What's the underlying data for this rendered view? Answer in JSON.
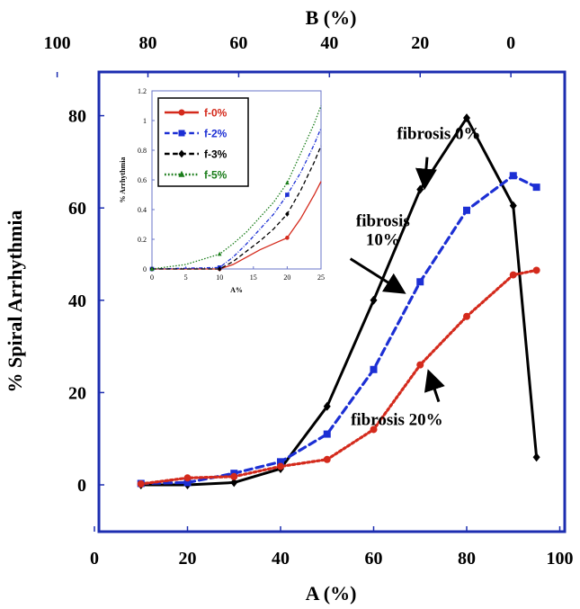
{
  "chart_data": [
    {
      "type": "line",
      "title": "",
      "xlabel": "A (%)",
      "ylabel": "% Spiral Arrhythmia",
      "xlim": [
        0,
        100
      ],
      "ylim": [
        -10,
        90
      ],
      "x_ticks": [
        "0",
        "20",
        "40",
        "60",
        "80",
        "100"
      ],
      "y_ticks": [
        "0",
        "20",
        "40",
        "60",
        "80"
      ],
      "top_axis": {
        "label": "B (%)",
        "ticks": [
          "100",
          "80",
          "60",
          "40",
          "20",
          "0"
        ],
        "tick_positions_a": [
          -8,
          11.5,
          31,
          50.5,
          70,
          89.5
        ]
      },
      "series": [
        {
          "name": "fibrosis 0%",
          "color": "#000000",
          "style": "solid",
          "marker": "diamond",
          "x": [
            10,
            20,
            30,
            40,
            50,
            60,
            70,
            80,
            90,
            95
          ],
          "y": [
            0,
            0,
            0.5,
            3.5,
            17,
            40,
            64,
            79.5,
            60.5,
            6
          ]
        },
        {
          "name": "fibrosis 10%",
          "color": "#1c2fd4",
          "style": "dashed",
          "marker": "square",
          "x": [
            10,
            20,
            30,
            40,
            50,
            60,
            70,
            80,
            90,
            95
          ],
          "y": [
            0.3,
            0.5,
            2.5,
            5,
            11,
            25,
            44,
            59.5,
            67,
            64.5
          ]
        },
        {
          "name": "fibrosis 20%",
          "color": "#d42a1c",
          "style": "dotted",
          "marker": "circle",
          "x": [
            10,
            20,
            30,
            40,
            50,
            60,
            70,
            80,
            90,
            95
          ],
          "y": [
            0.2,
            1.5,
            1.8,
            4,
            5.5,
            12,
            26,
            36.5,
            45.5,
            46.5
          ]
        }
      ],
      "annotations": [
        {
          "text": "fibrosis 0%",
          "lines": [
            "fibrosis 0%"
          ],
          "data_x": 74,
          "data_y": 75,
          "arrow_to": [
            71,
            65
          ]
        },
        {
          "text": "fibrosis 10%",
          "lines": [
            "fibrosis",
            "10%"
          ],
          "data_x": 62,
          "data_y": 56,
          "arrow_to": [
            66,
            42
          ]
        },
        {
          "text": "fibrosis 20%",
          "lines": [
            "fibrosis 20%"
          ],
          "data_x": 65,
          "data_y": 13,
          "arrow_to": [
            72,
            24
          ]
        }
      ]
    },
    {
      "type": "line",
      "title": "",
      "xlabel": "A%",
      "ylabel": "% Arrhythmia",
      "xlim": [
        0,
        25
      ],
      "ylim": [
        0,
        1.2
      ],
      "x_ticks": [
        "0",
        "5",
        "10",
        "15",
        "20",
        "25"
      ],
      "y_ticks": [
        "0",
        "0.2",
        "0.4",
        "0.6",
        "0.8",
        "1",
        "1.2"
      ],
      "legend": [
        "f-0%",
        "f-2%",
        "f-3%",
        "f-5%"
      ],
      "series": [
        {
          "name": "f-0%",
          "color": "#d42a1c",
          "style": "solid",
          "marker": "circle",
          "markers_at": [
            0,
            10,
            20
          ],
          "x": [
            0,
            10,
            12,
            14,
            16,
            18,
            20,
            22,
            24,
            25
          ],
          "y": [
            0,
            0,
            0.03,
            0.08,
            0.13,
            0.17,
            0.21,
            0.34,
            0.5,
            0.59
          ]
        },
        {
          "name": "f-2%",
          "color": "#1c2fd4",
          "style": "dashdot",
          "marker": "square",
          "markers_at": [
            0,
            10,
            20
          ],
          "x": [
            0,
            10,
            12,
            14,
            16,
            18,
            20,
            22,
            24,
            25
          ],
          "y": [
            0,
            0.01,
            0.08,
            0.17,
            0.27,
            0.37,
            0.5,
            0.65,
            0.84,
            0.95
          ]
        },
        {
          "name": "f-3%",
          "color": "#000000",
          "style": "dashed",
          "marker": "diamond",
          "markers_at": [
            0,
            10,
            20
          ],
          "x": [
            0,
            10,
            12,
            14,
            16,
            18,
            20,
            22,
            24,
            25
          ],
          "y": [
            0,
            0,
            0.05,
            0.12,
            0.19,
            0.27,
            0.37,
            0.53,
            0.72,
            0.83
          ]
        },
        {
          "name": "f-5%",
          "color": "#1a7d1a",
          "style": "dotted",
          "marker": "triangle",
          "markers_at": [
            0,
            10,
            20
          ],
          "x": [
            0,
            5,
            10,
            12,
            14,
            16,
            18,
            20,
            22,
            24,
            25
          ],
          "y": [
            0,
            0.03,
            0.1,
            0.17,
            0.25,
            0.35,
            0.45,
            0.58,
            0.78,
            0.98,
            1.1
          ]
        }
      ]
    }
  ]
}
